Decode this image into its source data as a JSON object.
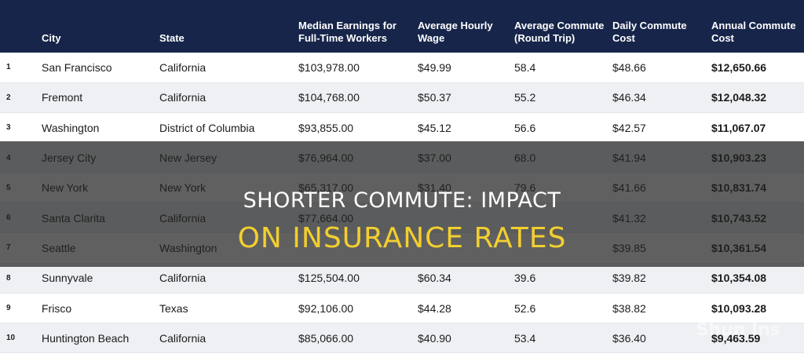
{
  "table": {
    "headers": [
      "",
      "City",
      "State",
      "Median Earnings for Full-Time Workers",
      "Average Hourly Wage",
      "Average Commute (Round Trip)",
      "Daily Commute Cost",
      "Annual Commute Cost"
    ],
    "rows": [
      [
        "1",
        "San Francisco",
        "California",
        "$103,978.00",
        "$49.99",
        "58.4",
        "$48.66",
        "$12,650.66"
      ],
      [
        "2",
        "Fremont",
        "California",
        "$104,768.00",
        "$50.37",
        "55.2",
        "$46.34",
        "$12,048.32"
      ],
      [
        "3",
        "Washington",
        "District of Columbia",
        "$93,855.00",
        "$45.12",
        "56.6",
        "$42.57",
        "$11,067.07"
      ],
      [
        "4",
        "Jersey City",
        "New Jersey",
        "$76,964.00",
        "$37.00",
        "68.0",
        "$41.94",
        "$10,903.23"
      ],
      [
        "5",
        "New York",
        "New York",
        "$65,317.00",
        "$31.40",
        "79.6",
        "$41.66",
        "$10,831.74"
      ],
      [
        "6",
        "Santa Clarita",
        "California",
        "$77,664.00",
        "",
        "",
        "$41.32",
        "$10,743.52"
      ],
      [
        "7",
        "Seattle",
        "Washington",
        "",
        "",
        "",
        "$39.85",
        "$10,361.54"
      ],
      [
        "8",
        "Sunnyvale",
        "California",
        "$125,504.00",
        "$60.34",
        "39.6",
        "$39.82",
        "$10,354.08"
      ],
      [
        "9",
        "Frisco",
        "Texas",
        "$92,106.00",
        "$44.28",
        "52.6",
        "$38.82",
        "$10,093.28"
      ],
      [
        "10",
        "Huntington Beach",
        "California",
        "$85,066.00",
        "$40.90",
        "53.4",
        "$36.40",
        "$9,463.59"
      ]
    ]
  },
  "overlay": {
    "line1": "SHORTER COMMUTE: IMPACT",
    "line2": "ON INSURANCE RATES"
  },
  "watermark": "Shun Ins"
}
